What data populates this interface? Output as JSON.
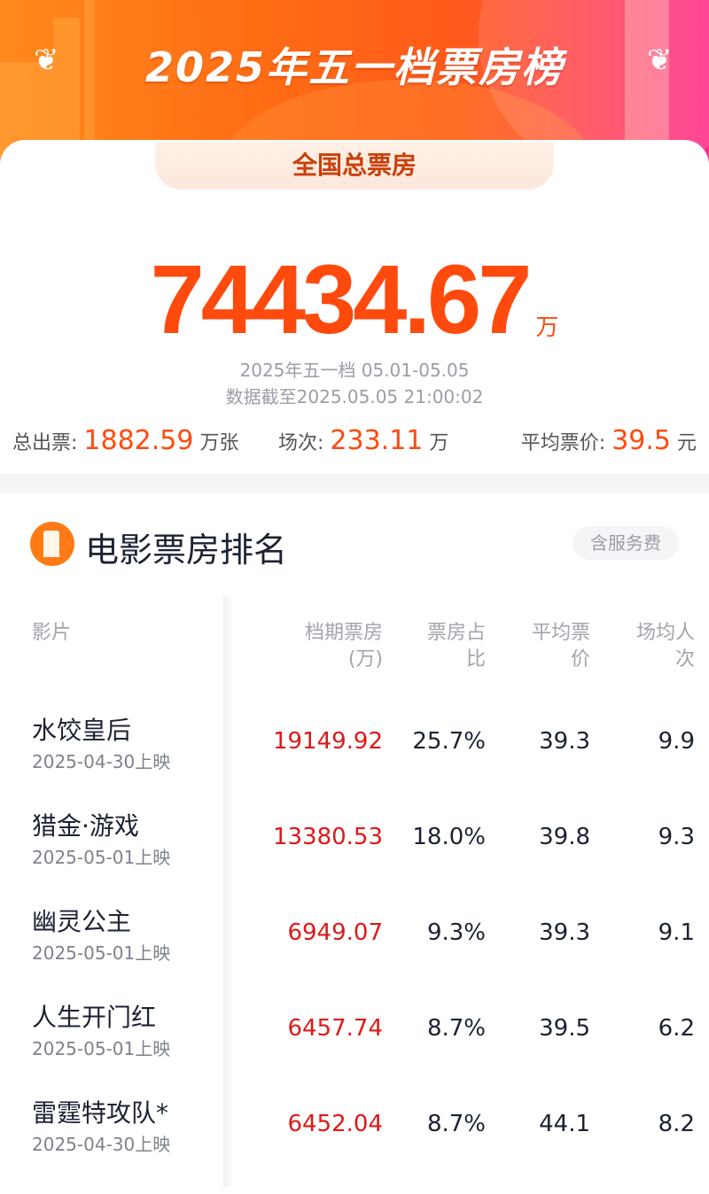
{
  "header": {
    "title": "2025年五一档票房榜",
    "tab": "全国总票房"
  },
  "summary": {
    "total": "74434.67",
    "unit": "万",
    "period": "2025年五一档 05.01-05.05",
    "updated": "数据截至2025.05.05 21:00:02",
    "tickets_label": "总出票:",
    "tickets": "1882.59",
    "tickets_unit": "万张",
    "shows_label": "场次:",
    "shows": "233.11",
    "shows_unit": "万",
    "price_label": "平均票价:",
    "price": "39.5",
    "price_unit": "元"
  },
  "ranking": {
    "title": "电影票房排名",
    "badge": "含服务费",
    "columns": {
      "film": "影片",
      "box_office": [
        "档期票房",
        "(万)"
      ],
      "share": [
        "票房占",
        "比"
      ],
      "avg_price": [
        "平均票",
        "价"
      ],
      "per_show": [
        "场均人",
        "次"
      ]
    },
    "rows": [
      {
        "name": "水饺皇后",
        "date": "2025-04-30上映",
        "box_office": "19149.92",
        "share": "25.7%",
        "avg_price": "39.3",
        "per_show": "9.9"
      },
      {
        "name": "猎金·游戏",
        "date": "2025-05-01上映",
        "box_office": "13380.53",
        "share": "18.0%",
        "avg_price": "39.8",
        "per_show": "9.3"
      },
      {
        "name": "幽灵公主",
        "date": "2025-05-01上映",
        "box_office": "6949.07",
        "share": "9.3%",
        "avg_price": "39.3",
        "per_show": "9.1"
      },
      {
        "name": "人生开门红",
        "date": "2025-05-01上映",
        "box_office": "6457.74",
        "share": "8.7%",
        "avg_price": "39.5",
        "per_show": "6.2"
      },
      {
        "name": "雷霆特攻队*",
        "date": "2025-04-30上映",
        "box_office": "6452.04",
        "share": "8.7%",
        "avg_price": "44.1",
        "per_show": "8.2"
      }
    ]
  },
  "colors": {
    "accent": "#ff4a0e",
    "red": "#e01818"
  }
}
